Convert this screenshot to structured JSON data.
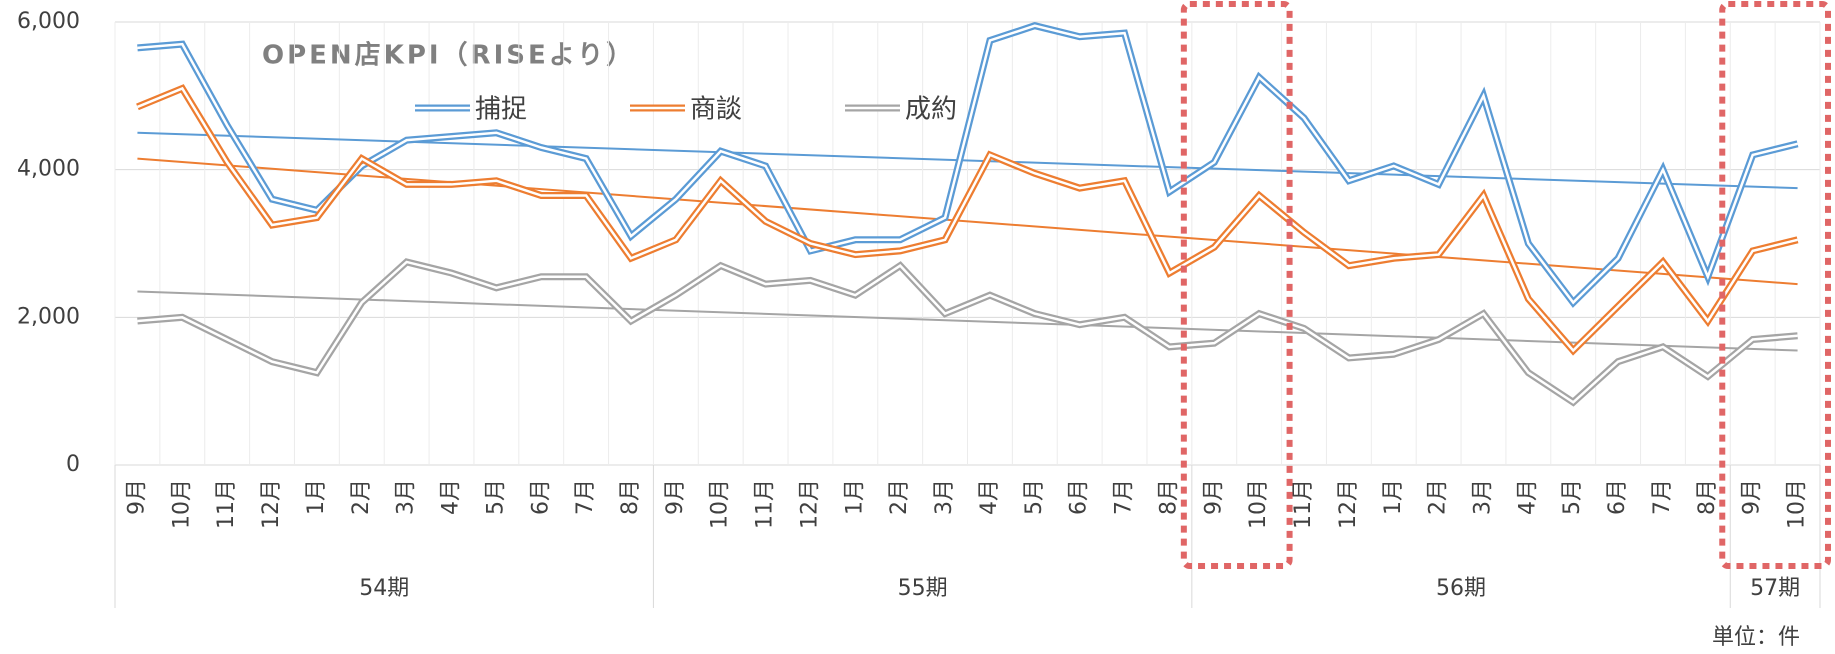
{
  "chart_data": {
    "type": "line",
    "title": "OPEN店KPI（RISEより）",
    "unit": "単位：件",
    "groups": [
      {
        "label": "54期",
        "categories": [
          "9月",
          "10月",
          "11月",
          "12月",
          "1月",
          "2月",
          "3月",
          "4月",
          "5月",
          "6月",
          "7月",
          "8月"
        ]
      },
      {
        "label": "55期",
        "categories": [
          "9月",
          "10月",
          "11月",
          "12月",
          "1月",
          "2月",
          "3月",
          "4月",
          "5月",
          "6月",
          "7月",
          "8月"
        ]
      },
      {
        "label": "56期",
        "categories": [
          "9月",
          "10月",
          "11月",
          "12月",
          "1月",
          "2月",
          "3月",
          "4月",
          "5月",
          "6月",
          "7月",
          "8月"
        ],
        "highlight": [
          "9月",
          "10月"
        ]
      },
      {
        "label": "57期",
        "categories": [
          "9月",
          "10月"
        ],
        "highlight": [
          "9月",
          "10月"
        ]
      }
    ],
    "series": [
      {
        "name": "捕捉",
        "color": "#5b9bd5",
        "trend": [
          4500,
          3750
        ],
        "values": [
          5650,
          5700,
          4600,
          3600,
          3450,
          4050,
          4400,
          4450,
          4500,
          4300,
          4150,
          3100,
          3600,
          4250,
          4050,
          2900,
          3050,
          3050,
          3350,
          5750,
          5950,
          5800,
          5850,
          3700,
          4100,
          5250,
          4700,
          3850,
          4050,
          3800,
          5000,
          3000,
          2200,
          2800,
          4000,
          2550,
          4200,
          4350
        ]
      },
      {
        "name": "商談",
        "color": "#ed7d31",
        "trend": [
          4150,
          2450
        ],
        "values": [
          4850,
          5100,
          4100,
          3250,
          3350,
          4150,
          3800,
          3800,
          3850,
          3650,
          3650,
          2800,
          3050,
          3850,
          3300,
          3000,
          2850,
          2900,
          3050,
          4200,
          3950,
          3750,
          3850,
          2600,
          2950,
          3650,
          3150,
          2700,
          2800,
          2850,
          3650,
          2250,
          1550,
          2150,
          2750,
          1950,
          2900,
          3050
        ]
      },
      {
        "name": "成約",
        "color": "#a5a5a5",
        "trend": [
          2350,
          1550
        ],
        "values": [
          1950,
          2000,
          1700,
          1400,
          1250,
          2200,
          2750,
          2600,
          2400,
          2550,
          2550,
          1950,
          2300,
          2700,
          2450,
          2500,
          2300,
          2700,
          2050,
          2300,
          2050,
          1900,
          2000,
          1600,
          1650,
          2050,
          1850,
          1450,
          1500,
          1700,
          2050,
          1250,
          850,
          1400,
          1600,
          1200,
          1700,
          1750
        ]
      }
    ],
    "ylim": [
      0,
      6000
    ],
    "yticks": [
      0,
      {
        "value": 2000,
        "label": "2,000"
      },
      {
        "value": 4000,
        "label": "4,000"
      },
      {
        "value": 6000,
        "label": "6,000"
      }
    ],
    "grid": true,
    "highlight_color": "#e06666"
  }
}
